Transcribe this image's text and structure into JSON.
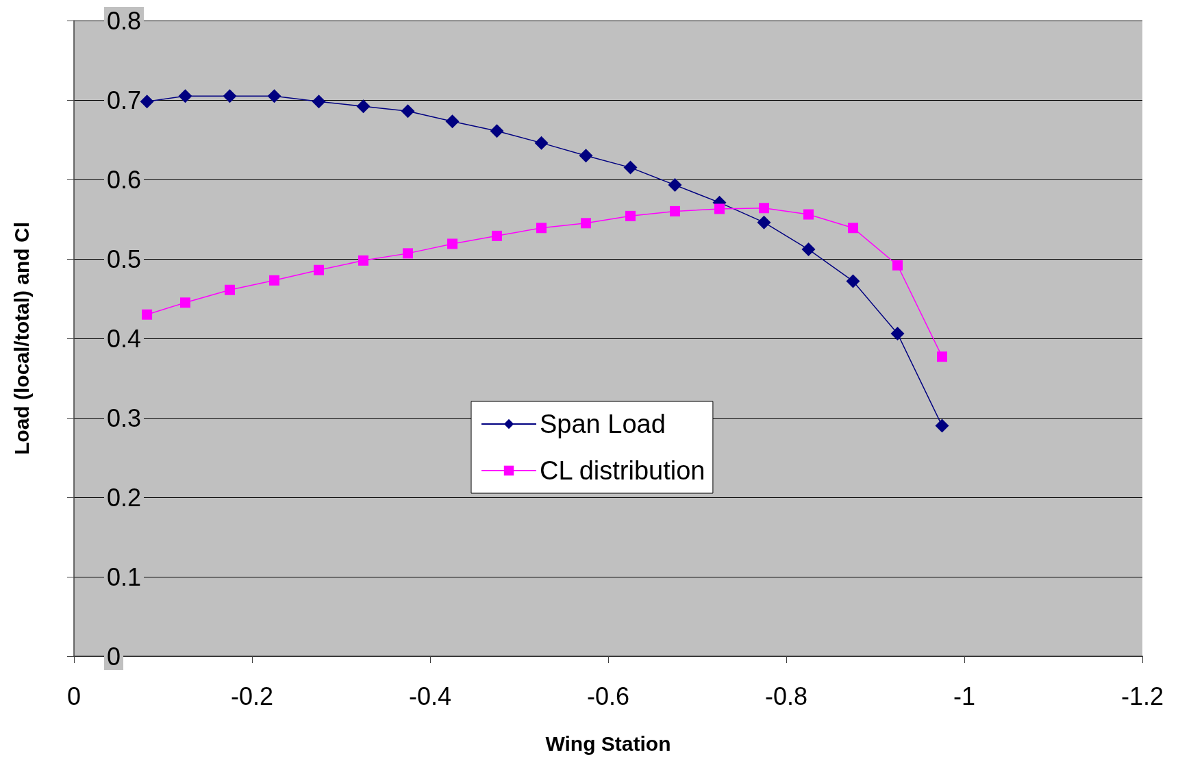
{
  "chart_data": {
    "type": "line",
    "xlabel": "Wing Station",
    "ylabel": "Load (local/total) and Cl",
    "x": [
      -0.082,
      -0.125,
      -0.175,
      -0.225,
      -0.275,
      -0.325,
      -0.375,
      -0.425,
      -0.475,
      -0.525,
      -0.575,
      -0.625,
      -0.675,
      -0.725,
      -0.775,
      -0.825,
      -0.875,
      -0.925,
      -0.975
    ],
    "series": [
      {
        "name": "Span Load",
        "color": "#000080",
        "marker": "diamond",
        "values": [
          0.698,
          0.705,
          0.705,
          0.705,
          0.698,
          0.692,
          0.686,
          0.673,
          0.661,
          0.646,
          0.63,
          0.615,
          0.593,
          0.571,
          0.546,
          0.512,
          0.472,
          0.406,
          0.29
        ]
      },
      {
        "name": "CL distribution",
        "color": "#ff00ff",
        "marker": "square",
        "values": [
          0.43,
          0.445,
          0.461,
          0.473,
          0.486,
          0.498,
          0.507,
          0.519,
          0.529,
          0.539,
          0.545,
          0.554,
          0.56,
          0.563,
          0.564,
          0.556,
          0.539,
          0.492,
          0.377
        ]
      }
    ],
    "xlim": [
      0,
      -1.2
    ],
    "xticks": [
      0,
      -0.2,
      -0.4,
      -0.6,
      -0.8,
      -1,
      -1.2
    ],
    "ylim": [
      0,
      0.8
    ],
    "yticks": [
      0,
      0.1,
      0.2,
      0.3,
      0.4,
      0.5,
      0.6,
      0.7,
      0.8
    ],
    "grid": "y",
    "legend": "center",
    "line_style": "solid"
  }
}
